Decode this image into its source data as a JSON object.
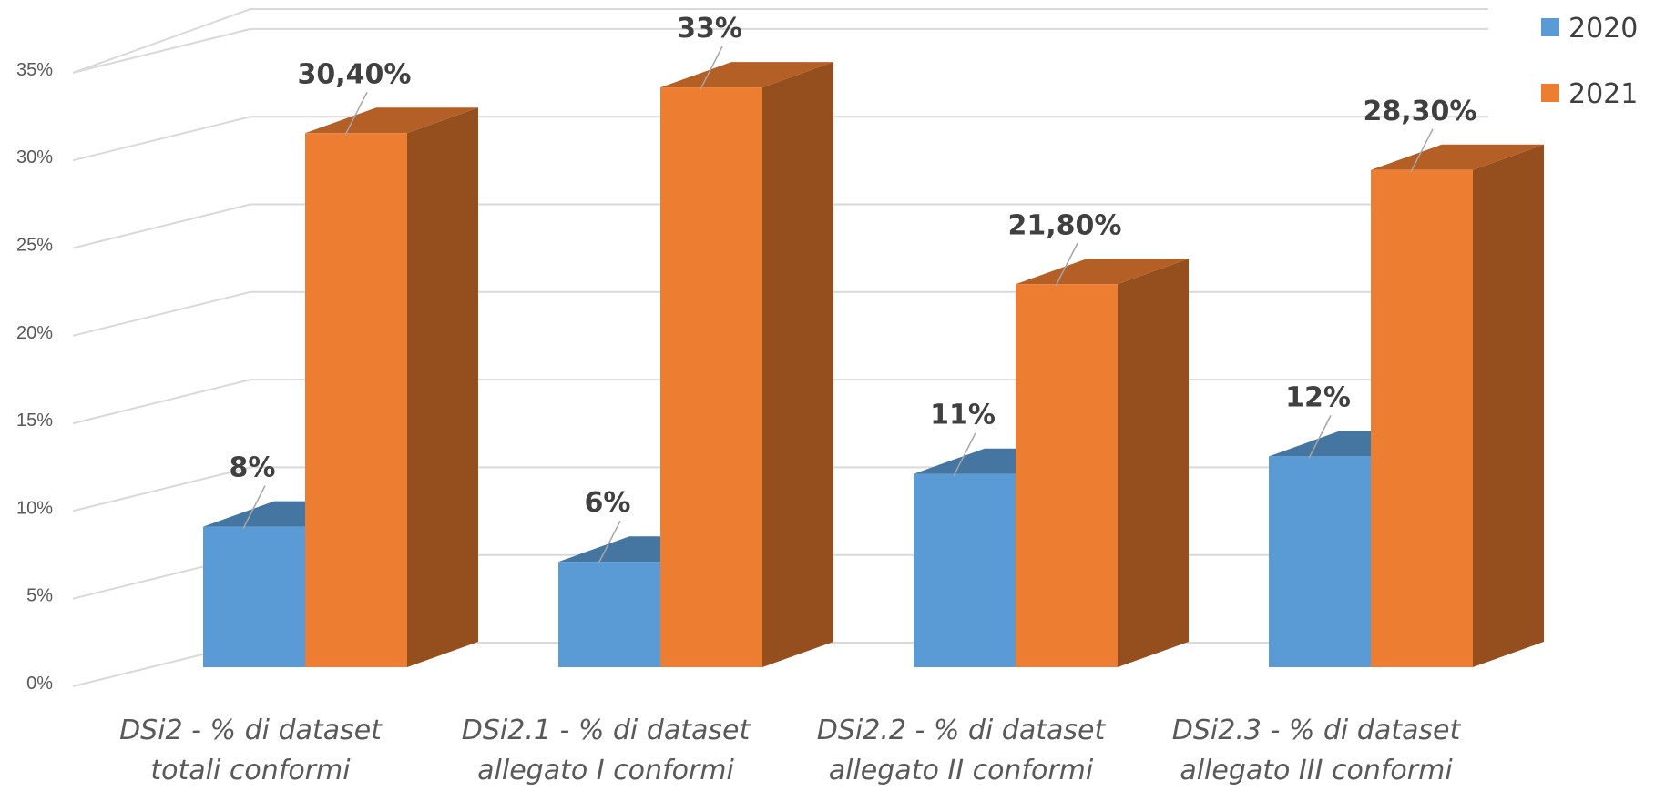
{
  "chart_data": {
    "type": "bar",
    "style": "3d-clustered-column",
    "categories": [
      [
        "DSi2 - % di dataset",
        "totali conformi"
      ],
      [
        "DSi2.1 - % di dataset",
        "allegato I conformi"
      ],
      [
        "DSi2.2 - % di dataset",
        "allegato II conformi"
      ],
      [
        "DSi2.3 - % di dataset",
        "allegato III conformi"
      ]
    ],
    "series": [
      {
        "name": "2020",
        "color": "#5B9BD5",
        "values": [
          8,
          6,
          11,
          12
        ],
        "labels": [
          "8%",
          "6%",
          "11%",
          "12%"
        ]
      },
      {
        "name": "2021",
        "color": "#ED7D31",
        "values": [
          30.4,
          33,
          21.8,
          28.3
        ],
        "labels": [
          "30,40%",
          "33%",
          "21,80%",
          "28,30%"
        ]
      }
    ],
    "ylim": [
      0,
      35
    ],
    "yticks": [
      "0%",
      "5%",
      "10%",
      "15%",
      "20%",
      "25%",
      "30%",
      "35%"
    ],
    "grid": true,
    "legend_position": "top-right"
  }
}
